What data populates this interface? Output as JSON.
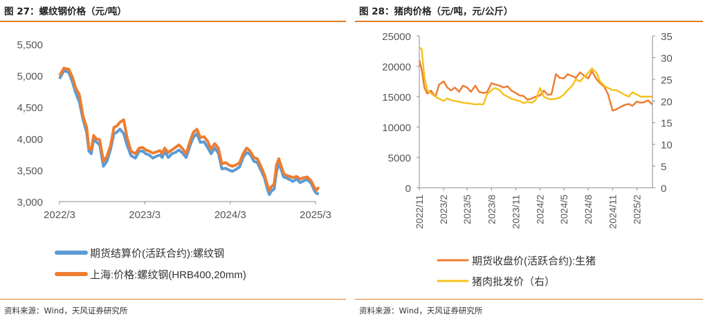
{
  "left": {
    "title": "图 27：螺纹钢价格（元/吨）",
    "source": "资料来源：Wind，天风证券研究所",
    "chart_data": {
      "type": "line",
      "title": "",
      "xlabel": "",
      "ylabel": "",
      "x_start": "2022-03",
      "x_end": "2025-03",
      "ylim": [
        3000,
        5500
      ],
      "yticks": [
        3000,
        3500,
        4000,
        4500,
        5000,
        5500
      ],
      "ytick_labels": [
        "3,000",
        "3,500",
        "4,000",
        "4,500",
        "5,000",
        "5,500"
      ],
      "xticks": [
        "2022-03",
        "2023-03",
        "2024-03",
        "2025-03"
      ],
      "xtick_labels": [
        "2022/3",
        "2023/3",
        "2024/3",
        "2025/3"
      ],
      "grid": false,
      "legend_position": "bottom",
      "series": [
        {
          "name": "期货结算价(活跃合约):螺纹钢",
          "color": "#5b9bd5",
          "x": [
            "2022-03-01",
            "2022-03-20",
            "2022-04-10",
            "2022-04-25",
            "2022-05-10",
            "2022-05-25",
            "2022-06-10",
            "2022-06-25",
            "2022-07-05",
            "2022-07-15",
            "2022-07-25",
            "2022-08-05",
            "2022-08-20",
            "2022-09-05",
            "2022-09-20",
            "2022-10-05",
            "2022-10-20",
            "2022-11-01",
            "2022-11-15",
            "2022-12-01",
            "2022-12-15",
            "2023-01-01",
            "2023-01-20",
            "2023-02-05",
            "2023-02-20",
            "2023-03-05",
            "2023-03-20",
            "2023-04-05",
            "2023-04-20",
            "2023-05-05",
            "2023-05-15",
            "2023-05-25",
            "2023-06-10",
            "2023-06-25",
            "2023-07-10",
            "2023-07-25",
            "2023-08-10",
            "2023-08-25",
            "2023-09-10",
            "2023-09-25",
            "2023-10-10",
            "2023-10-25",
            "2023-11-10",
            "2023-11-25",
            "2023-12-10",
            "2023-12-25",
            "2024-01-10",
            "2024-01-25",
            "2024-02-10",
            "2024-02-25",
            "2024-03-10",
            "2024-03-25",
            "2024-04-10",
            "2024-04-25",
            "2024-05-10",
            "2024-05-25",
            "2024-06-10",
            "2024-06-25",
            "2024-07-10",
            "2024-07-25",
            "2024-08-05",
            "2024-08-15",
            "2024-08-25",
            "2024-09-05",
            "2024-09-15",
            "2024-09-25",
            "2024-10-05",
            "2024-10-15",
            "2024-10-25",
            "2024-11-10",
            "2024-11-25",
            "2024-12-10",
            "2024-12-25",
            "2025-01-10",
            "2025-01-25",
            "2025-02-10",
            "2025-02-25",
            "2025-03-05",
            "2025-03-15"
          ],
          "values": [
            4950,
            5080,
            5050,
            4900,
            4720,
            4580,
            4300,
            4100,
            3800,
            3760,
            3980,
            3950,
            3900,
            3560,
            3640,
            3820,
            4080,
            4100,
            4150,
            4080,
            3900,
            3730,
            3690,
            3800,
            3800,
            3760,
            3740,
            3690,
            3720,
            3740,
            3700,
            3800,
            3700,
            3760,
            3780,
            3820,
            3770,
            3700,
            3880,
            4020,
            4080,
            3940,
            3950,
            3860,
            3760,
            3850,
            3770,
            3520,
            3530,
            3500,
            3480,
            3510,
            3550,
            3700,
            3780,
            3750,
            3640,
            3620,
            3500,
            3380,
            3220,
            3110,
            3170,
            3200,
            3470,
            3610,
            3510,
            3390,
            3380,
            3350,
            3320,
            3360,
            3300,
            3330,
            3350,
            3290,
            3170,
            3130,
            3120
          ]
        },
        {
          "name": "上海:价格:螺纹钢(HRB400,20mm)",
          "color": "#ed7d31",
          "x": [
            "2022-03-01",
            "2022-03-20",
            "2022-04-10",
            "2022-04-25",
            "2022-05-10",
            "2022-05-25",
            "2022-06-10",
            "2022-06-25",
            "2022-07-05",
            "2022-07-15",
            "2022-07-25",
            "2022-08-05",
            "2022-08-20",
            "2022-09-05",
            "2022-09-20",
            "2022-10-05",
            "2022-10-20",
            "2022-11-01",
            "2022-11-15",
            "2022-12-01",
            "2022-12-15",
            "2023-01-01",
            "2023-01-20",
            "2023-02-05",
            "2023-02-20",
            "2023-03-05",
            "2023-03-20",
            "2023-04-05",
            "2023-04-20",
            "2023-05-05",
            "2023-05-15",
            "2023-05-25",
            "2023-06-10",
            "2023-06-25",
            "2023-07-10",
            "2023-07-25",
            "2023-08-10",
            "2023-08-25",
            "2023-09-10",
            "2023-09-25",
            "2023-10-10",
            "2023-10-25",
            "2023-11-10",
            "2023-11-25",
            "2023-12-10",
            "2023-12-25",
            "2024-01-10",
            "2024-01-25",
            "2024-02-10",
            "2024-02-25",
            "2024-03-10",
            "2024-03-25",
            "2024-04-10",
            "2024-04-25",
            "2024-05-10",
            "2024-05-25",
            "2024-06-10",
            "2024-06-25",
            "2024-07-10",
            "2024-07-25",
            "2024-08-05",
            "2024-08-15",
            "2024-08-25",
            "2024-09-05",
            "2024-09-15",
            "2024-09-25",
            "2024-10-05",
            "2024-10-15",
            "2024-10-25",
            "2024-11-10",
            "2024-11-25",
            "2024-12-10",
            "2024-12-25",
            "2025-01-10",
            "2025-01-25",
            "2025-02-10",
            "2025-02-25",
            "2025-03-05",
            "2025-03-15"
          ],
          "values": [
            5000,
            5120,
            5100,
            4980,
            4800,
            4700,
            4350,
            4180,
            3850,
            3820,
            4050,
            4000,
            3980,
            3640,
            3720,
            3880,
            4180,
            4200,
            4260,
            4300,
            4020,
            3800,
            3760,
            3850,
            3860,
            3820,
            3800,
            3770,
            3790,
            3810,
            3760,
            3850,
            3780,
            3820,
            3860,
            3900,
            3840,
            3760,
            3950,
            4100,
            4150,
            4020,
            4030,
            3960,
            3830,
            3920,
            3850,
            3600,
            3620,
            3580,
            3560,
            3580,
            3620,
            3760,
            3850,
            3800,
            3700,
            3680,
            3560,
            3430,
            3280,
            3180,
            3240,
            3280,
            3580,
            3680,
            3560,
            3450,
            3420,
            3400,
            3380,
            3400,
            3360,
            3380,
            3390,
            3330,
            3220,
            3180,
            3230
          ]
        }
      ]
    }
  },
  "right": {
    "title": "图 28：猪肉价格（元/吨，元/公斤）",
    "source": "资料来源：Wind，天风证券研究所",
    "chart_data": {
      "type": "line",
      "title": "",
      "xlabel": "",
      "ylabel": "",
      "ylim": [
        0,
        25000
      ],
      "yticks": [
        0,
        5000,
        10000,
        15000,
        20000,
        25000
      ],
      "ylim_right": [
        0,
        35
      ],
      "yticks_right": [
        0,
        5,
        10,
        15,
        20,
        25,
        30,
        35
      ],
      "x_start": "2022-11",
      "x_end": "2025-04",
      "xticks": [
        "2022-11",
        "2023-02",
        "2023-05",
        "2023-08",
        "2023-11",
        "2024-02",
        "2024-05",
        "2024-08",
        "2024-11",
        "2025-02"
      ],
      "xtick_labels": [
        "2022/11",
        "2023/2",
        "2023/5",
        "2023/8",
        "2023/11",
        "2024/2",
        "2024/5",
        "2024/8",
        "2024/11",
        "2025/2"
      ],
      "grid": false,
      "legend_position": "bottom",
      "series": [
        {
          "name": "期货收盘价(活跃合约):生猪",
          "axis": "left",
          "color": "#ed7d31",
          "x": [
            "2022-11-01",
            "2022-11-10",
            "2022-11-20",
            "2022-12-01",
            "2022-12-15",
            "2023-01-01",
            "2023-01-15",
            "2023-02-01",
            "2023-02-15",
            "2023-03-01",
            "2023-03-15",
            "2023-04-01",
            "2023-04-15",
            "2023-05-01",
            "2023-05-15",
            "2023-06-01",
            "2023-06-15",
            "2023-07-01",
            "2023-07-15",
            "2023-08-01",
            "2023-08-15",
            "2023-09-01",
            "2023-09-15",
            "2023-10-01",
            "2023-10-15",
            "2023-11-01",
            "2023-11-15",
            "2023-12-01",
            "2023-12-15",
            "2024-01-01",
            "2024-01-15",
            "2024-02-01",
            "2024-02-15",
            "2024-03-01",
            "2024-03-15",
            "2024-04-01",
            "2024-04-15",
            "2024-05-01",
            "2024-05-15",
            "2024-06-01",
            "2024-06-15",
            "2024-07-01",
            "2024-07-15",
            "2024-08-01",
            "2024-08-15",
            "2024-09-01",
            "2024-09-15",
            "2024-10-01",
            "2024-10-15",
            "2024-11-01",
            "2024-11-15",
            "2024-12-01",
            "2024-12-15",
            "2025-01-01",
            "2025-01-15",
            "2025-02-01",
            "2025-02-15",
            "2025-03-01",
            "2025-03-15",
            "2025-03-31"
          ],
          "values": [
            21000,
            19500,
            16500,
            15500,
            16000,
            15000,
            17000,
            17500,
            16500,
            16000,
            16500,
            15800,
            16800,
            16500,
            15800,
            16800,
            15800,
            15600,
            15700,
            17200,
            17000,
            16800,
            16500,
            16700,
            16000,
            15600,
            15200,
            15100,
            14500,
            14700,
            15000,
            15200,
            16000,
            15300,
            15400,
            18700,
            18100,
            18000,
            18700,
            18400,
            18100,
            19000,
            18500,
            18000,
            19200,
            17900,
            17200,
            16600,
            15400,
            12700,
            12900,
            13300,
            13600,
            13800,
            13500,
            14200,
            14000,
            14100,
            14400,
            13700
          ]
        },
        {
          "name": "猪肉批发价（右）",
          "axis": "right",
          "color": "#f5c21e",
          "x": [
            "2022-11-01",
            "2022-11-10",
            "2022-11-20",
            "2022-12-01",
            "2022-12-15",
            "2023-01-01",
            "2023-01-15",
            "2023-02-01",
            "2023-02-15",
            "2023-03-01",
            "2023-03-15",
            "2023-04-01",
            "2023-04-15",
            "2023-05-01",
            "2023-05-15",
            "2023-06-01",
            "2023-06-15",
            "2023-07-01",
            "2023-07-15",
            "2023-08-01",
            "2023-08-15",
            "2023-09-01",
            "2023-09-15",
            "2023-10-01",
            "2023-10-15",
            "2023-11-01",
            "2023-11-15",
            "2023-12-01",
            "2023-12-15",
            "2024-01-01",
            "2024-01-15",
            "2024-02-01",
            "2024-02-15",
            "2024-03-01",
            "2024-03-15",
            "2024-04-01",
            "2024-04-15",
            "2024-05-01",
            "2024-05-15",
            "2024-06-01",
            "2024-06-15",
            "2024-07-01",
            "2024-07-15",
            "2024-08-01",
            "2024-08-15",
            "2024-09-01",
            "2024-09-15",
            "2024-10-01",
            "2024-10-15",
            "2024-11-01",
            "2024-11-15",
            "2024-12-01",
            "2024-12-15",
            "2025-01-01",
            "2025-01-15",
            "2025-02-01",
            "2025-02-15",
            "2025-03-01",
            "2025-03-15",
            "2025-03-31"
          ],
          "values": [
            32.3,
            32.0,
            25.5,
            22.5,
            21.8,
            21.0,
            20.5,
            20.0,
            20.6,
            20.2,
            20.0,
            19.8,
            19.6,
            19.5,
            19.4,
            19.2,
            19.3,
            19.2,
            21.5,
            22.5,
            23.0,
            22.5,
            21.5,
            21.0,
            20.5,
            20.2,
            20.0,
            19.5,
            19.8,
            19.6,
            20.2,
            23.0,
            21.0,
            20.5,
            20.4,
            20.5,
            20.8,
            21.5,
            22.5,
            23.5,
            25.0,
            24.5,
            25.5,
            26.5,
            27.5,
            26.5,
            24.5,
            23.5,
            23.0,
            22.5,
            22.5,
            22.0,
            21.5,
            21.0,
            22.0,
            21.5,
            21.0,
            21.0,
            21.0,
            21.0
          ]
        }
      ]
    }
  }
}
